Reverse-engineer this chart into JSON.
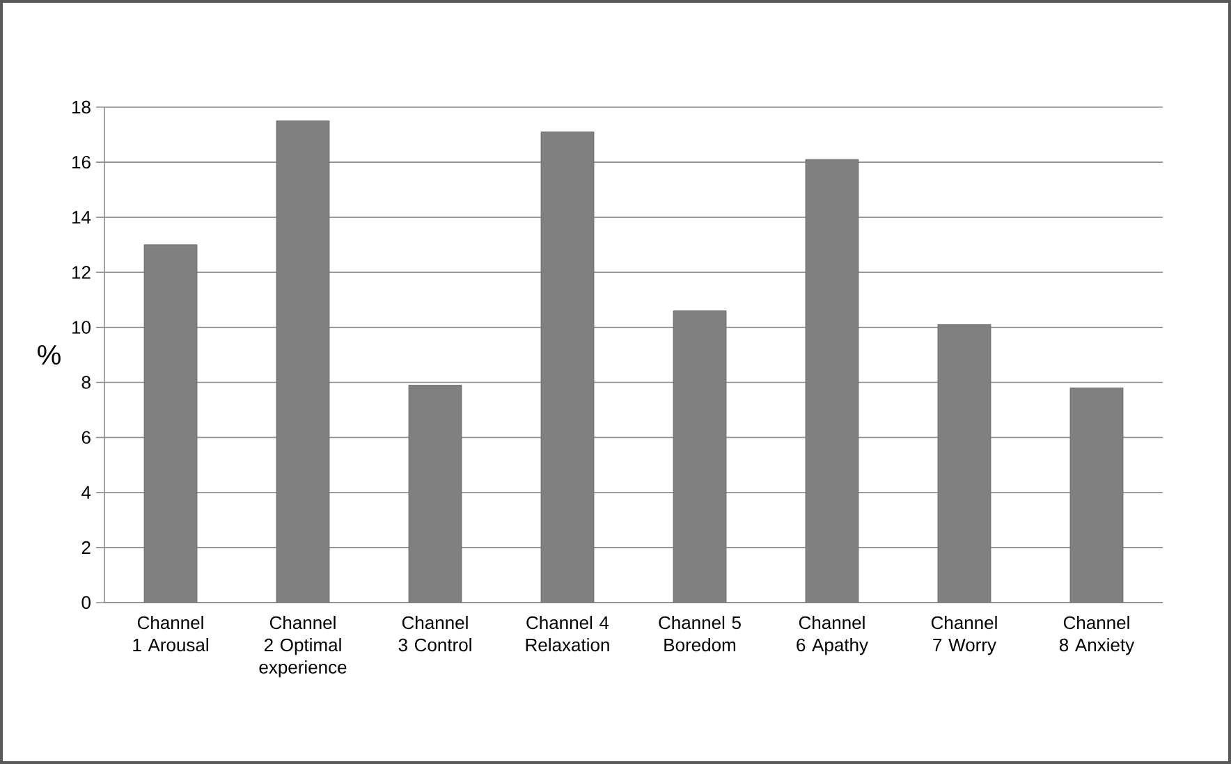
{
  "chart_data": {
    "type": "bar",
    "ylabel": "%",
    "categories": [
      "Channel 1 Arousal",
      "Channel 2 Optimal experience",
      "Channel 3 Control",
      "Channel 4 Relaxation",
      "Channel 5 Boredom",
      "Channel 6 Apathy",
      "Channel 7 Worry",
      "Channel 8 Anxiety"
    ],
    "values": [
      13.0,
      17.5,
      7.9,
      17.1,
      10.6,
      16.1,
      10.1,
      7.8
    ],
    "color": "#808080",
    "ylim": [
      0,
      18
    ],
    "yticks": [
      0,
      2,
      4,
      6,
      8,
      10,
      12,
      14,
      16,
      18
    ],
    "grid": "y"
  }
}
